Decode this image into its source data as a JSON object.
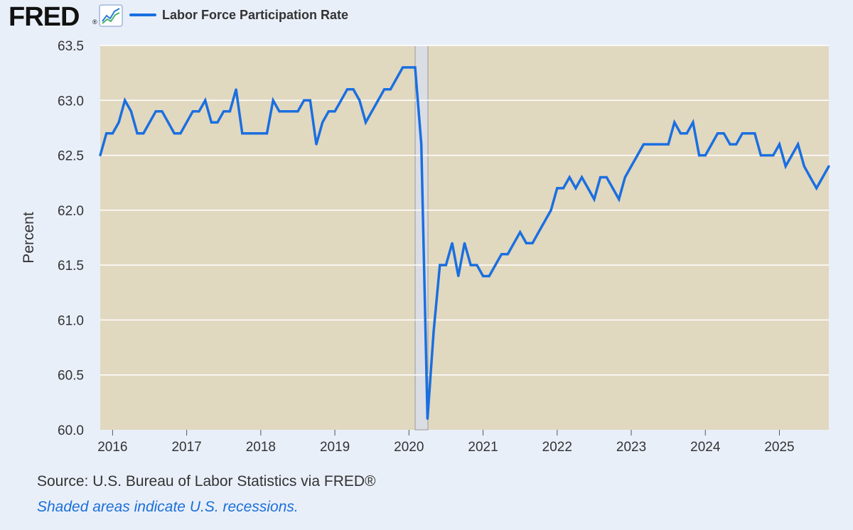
{
  "logo": {
    "text": "FRED",
    "registered": "®",
    "icon": "trend-line-chart-icon"
  },
  "colors": {
    "background": "#e9eff9",
    "plot_background": "#e1d8c0",
    "recession_shade": "#dadde3",
    "series": "#1a6fe0",
    "grid": "#ffffff",
    "text": "#333333",
    "note": "#1a6fd8"
  },
  "chart_data": {
    "type": "line",
    "legend": "top-left",
    "grid": true,
    "ylabel": "Percent",
    "xlabel": "",
    "ylim": [
      60.0,
      63.5
    ],
    "y_ticks": [
      60.0,
      60.5,
      61.0,
      61.5,
      62.0,
      62.5,
      63.0,
      63.5
    ],
    "y_tick_labels": [
      "60.0",
      "60.5",
      "61.0",
      "61.5",
      "62.0",
      "62.5",
      "63.0",
      "63.5"
    ],
    "x_start": "2015-11",
    "x_end": "2025-09",
    "x_ticks": [
      "2016-01",
      "2017-01",
      "2018-01",
      "2019-01",
      "2020-01",
      "2021-01",
      "2022-01",
      "2023-01",
      "2024-01",
      "2025-01"
    ],
    "x_tick_labels": [
      "2016",
      "2017",
      "2018",
      "2019",
      "2020",
      "2021",
      "2022",
      "2023",
      "2024",
      "2025"
    ],
    "recessions": [
      {
        "start": "2020-02",
        "end": "2020-04"
      }
    ],
    "series": [
      {
        "name": "Labor Force Participation Rate",
        "x": [
          "2015-11",
          "2015-12",
          "2016-01",
          "2016-02",
          "2016-03",
          "2016-04",
          "2016-05",
          "2016-06",
          "2016-07",
          "2016-08",
          "2016-09",
          "2016-10",
          "2016-11",
          "2016-12",
          "2017-01",
          "2017-02",
          "2017-03",
          "2017-04",
          "2017-05",
          "2017-06",
          "2017-07",
          "2017-08",
          "2017-09",
          "2017-10",
          "2017-11",
          "2017-12",
          "2018-01",
          "2018-02",
          "2018-03",
          "2018-04",
          "2018-05",
          "2018-06",
          "2018-07",
          "2018-08",
          "2018-09",
          "2018-10",
          "2018-11",
          "2018-12",
          "2019-01",
          "2019-02",
          "2019-03",
          "2019-04",
          "2019-05",
          "2019-06",
          "2019-07",
          "2019-08",
          "2019-09",
          "2019-10",
          "2019-11",
          "2019-12",
          "2020-01",
          "2020-02",
          "2020-03",
          "2020-04",
          "2020-05",
          "2020-06",
          "2020-07",
          "2020-08",
          "2020-09",
          "2020-10",
          "2020-11",
          "2020-12",
          "2021-01",
          "2021-02",
          "2021-03",
          "2021-04",
          "2021-05",
          "2021-06",
          "2021-07",
          "2021-08",
          "2021-09",
          "2021-10",
          "2021-11",
          "2021-12",
          "2022-01",
          "2022-02",
          "2022-03",
          "2022-04",
          "2022-05",
          "2022-06",
          "2022-07",
          "2022-08",
          "2022-09",
          "2022-10",
          "2022-11",
          "2022-12",
          "2023-01",
          "2023-02",
          "2023-03",
          "2023-04",
          "2023-05",
          "2023-06",
          "2023-07",
          "2023-08",
          "2023-09",
          "2023-10",
          "2023-11",
          "2023-12",
          "2024-01",
          "2024-02",
          "2024-03",
          "2024-04",
          "2024-05",
          "2024-06",
          "2024-07",
          "2024-08",
          "2024-09",
          "2024-10",
          "2024-11",
          "2024-12",
          "2025-01",
          "2025-02",
          "2025-03",
          "2025-04",
          "2025-05",
          "2025-06",
          "2025-07",
          "2025-08",
          "2025-09"
        ],
        "values": [
          62.5,
          62.7,
          62.7,
          62.8,
          63.0,
          62.9,
          62.7,
          62.7,
          62.8,
          62.9,
          62.9,
          62.8,
          62.7,
          62.7,
          62.8,
          62.9,
          62.9,
          63.0,
          62.8,
          62.8,
          62.9,
          62.9,
          63.1,
          62.7,
          62.7,
          62.7,
          62.7,
          62.7,
          63.0,
          62.9,
          62.9,
          62.9,
          62.9,
          63.0,
          63.0,
          62.6,
          62.8,
          62.9,
          62.9,
          63.0,
          63.1,
          63.1,
          63.0,
          62.8,
          62.9,
          63.0,
          63.1,
          63.1,
          63.2,
          63.3,
          63.3,
          63.3,
          62.6,
          60.1,
          60.9,
          61.5,
          61.5,
          61.7,
          61.4,
          61.7,
          61.5,
          61.5,
          61.4,
          61.4,
          61.5,
          61.6,
          61.6,
          61.7,
          61.8,
          61.7,
          61.7,
          61.8,
          61.9,
          62.0,
          62.2,
          62.2,
          62.3,
          62.2,
          62.3,
          62.2,
          62.1,
          62.3,
          62.3,
          62.2,
          62.1,
          62.3,
          62.4,
          62.5,
          62.6,
          62.6,
          62.6,
          62.6,
          62.6,
          62.8,
          62.7,
          62.7,
          62.8,
          62.5,
          62.5,
          62.6,
          62.7,
          62.7,
          62.6,
          62.6,
          62.7,
          62.7,
          62.7,
          62.5,
          62.5,
          62.5,
          62.6,
          62.4,
          62.5,
          62.6,
          62.4,
          62.3,
          62.2,
          62.3,
          62.4
        ]
      }
    ]
  },
  "footer": {
    "source": "Source: U.S. Bureau of Labor Statistics via FRED®",
    "note": "Shaded areas indicate U.S. recessions."
  }
}
